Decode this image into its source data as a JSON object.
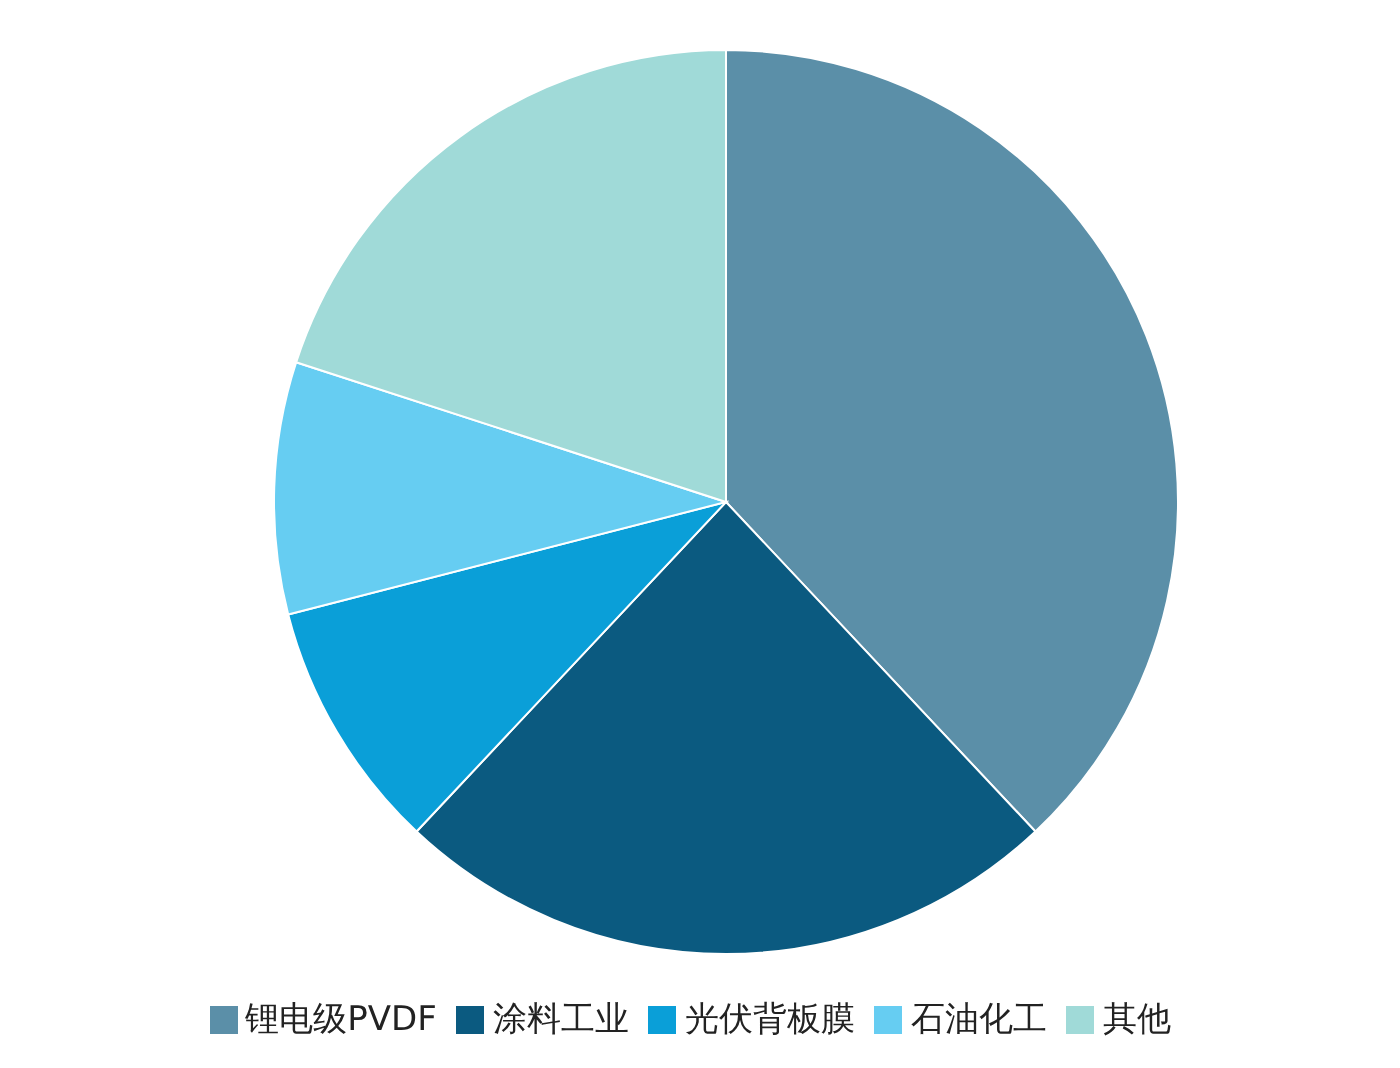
{
  "chart_data": {
    "type": "pie",
    "categories": [
      "锂电级PVDF",
      "涂料工业",
      "光伏背板膜",
      "石油化工",
      "其他"
    ],
    "values": [
      38,
      24,
      9,
      9,
      20
    ],
    "colors": [
      "#5b8fa8",
      "#0b5a80",
      "#0a9fd8",
      "#66cdf2",
      "#a0dad8"
    ],
    "legend": "bottom"
  }
}
